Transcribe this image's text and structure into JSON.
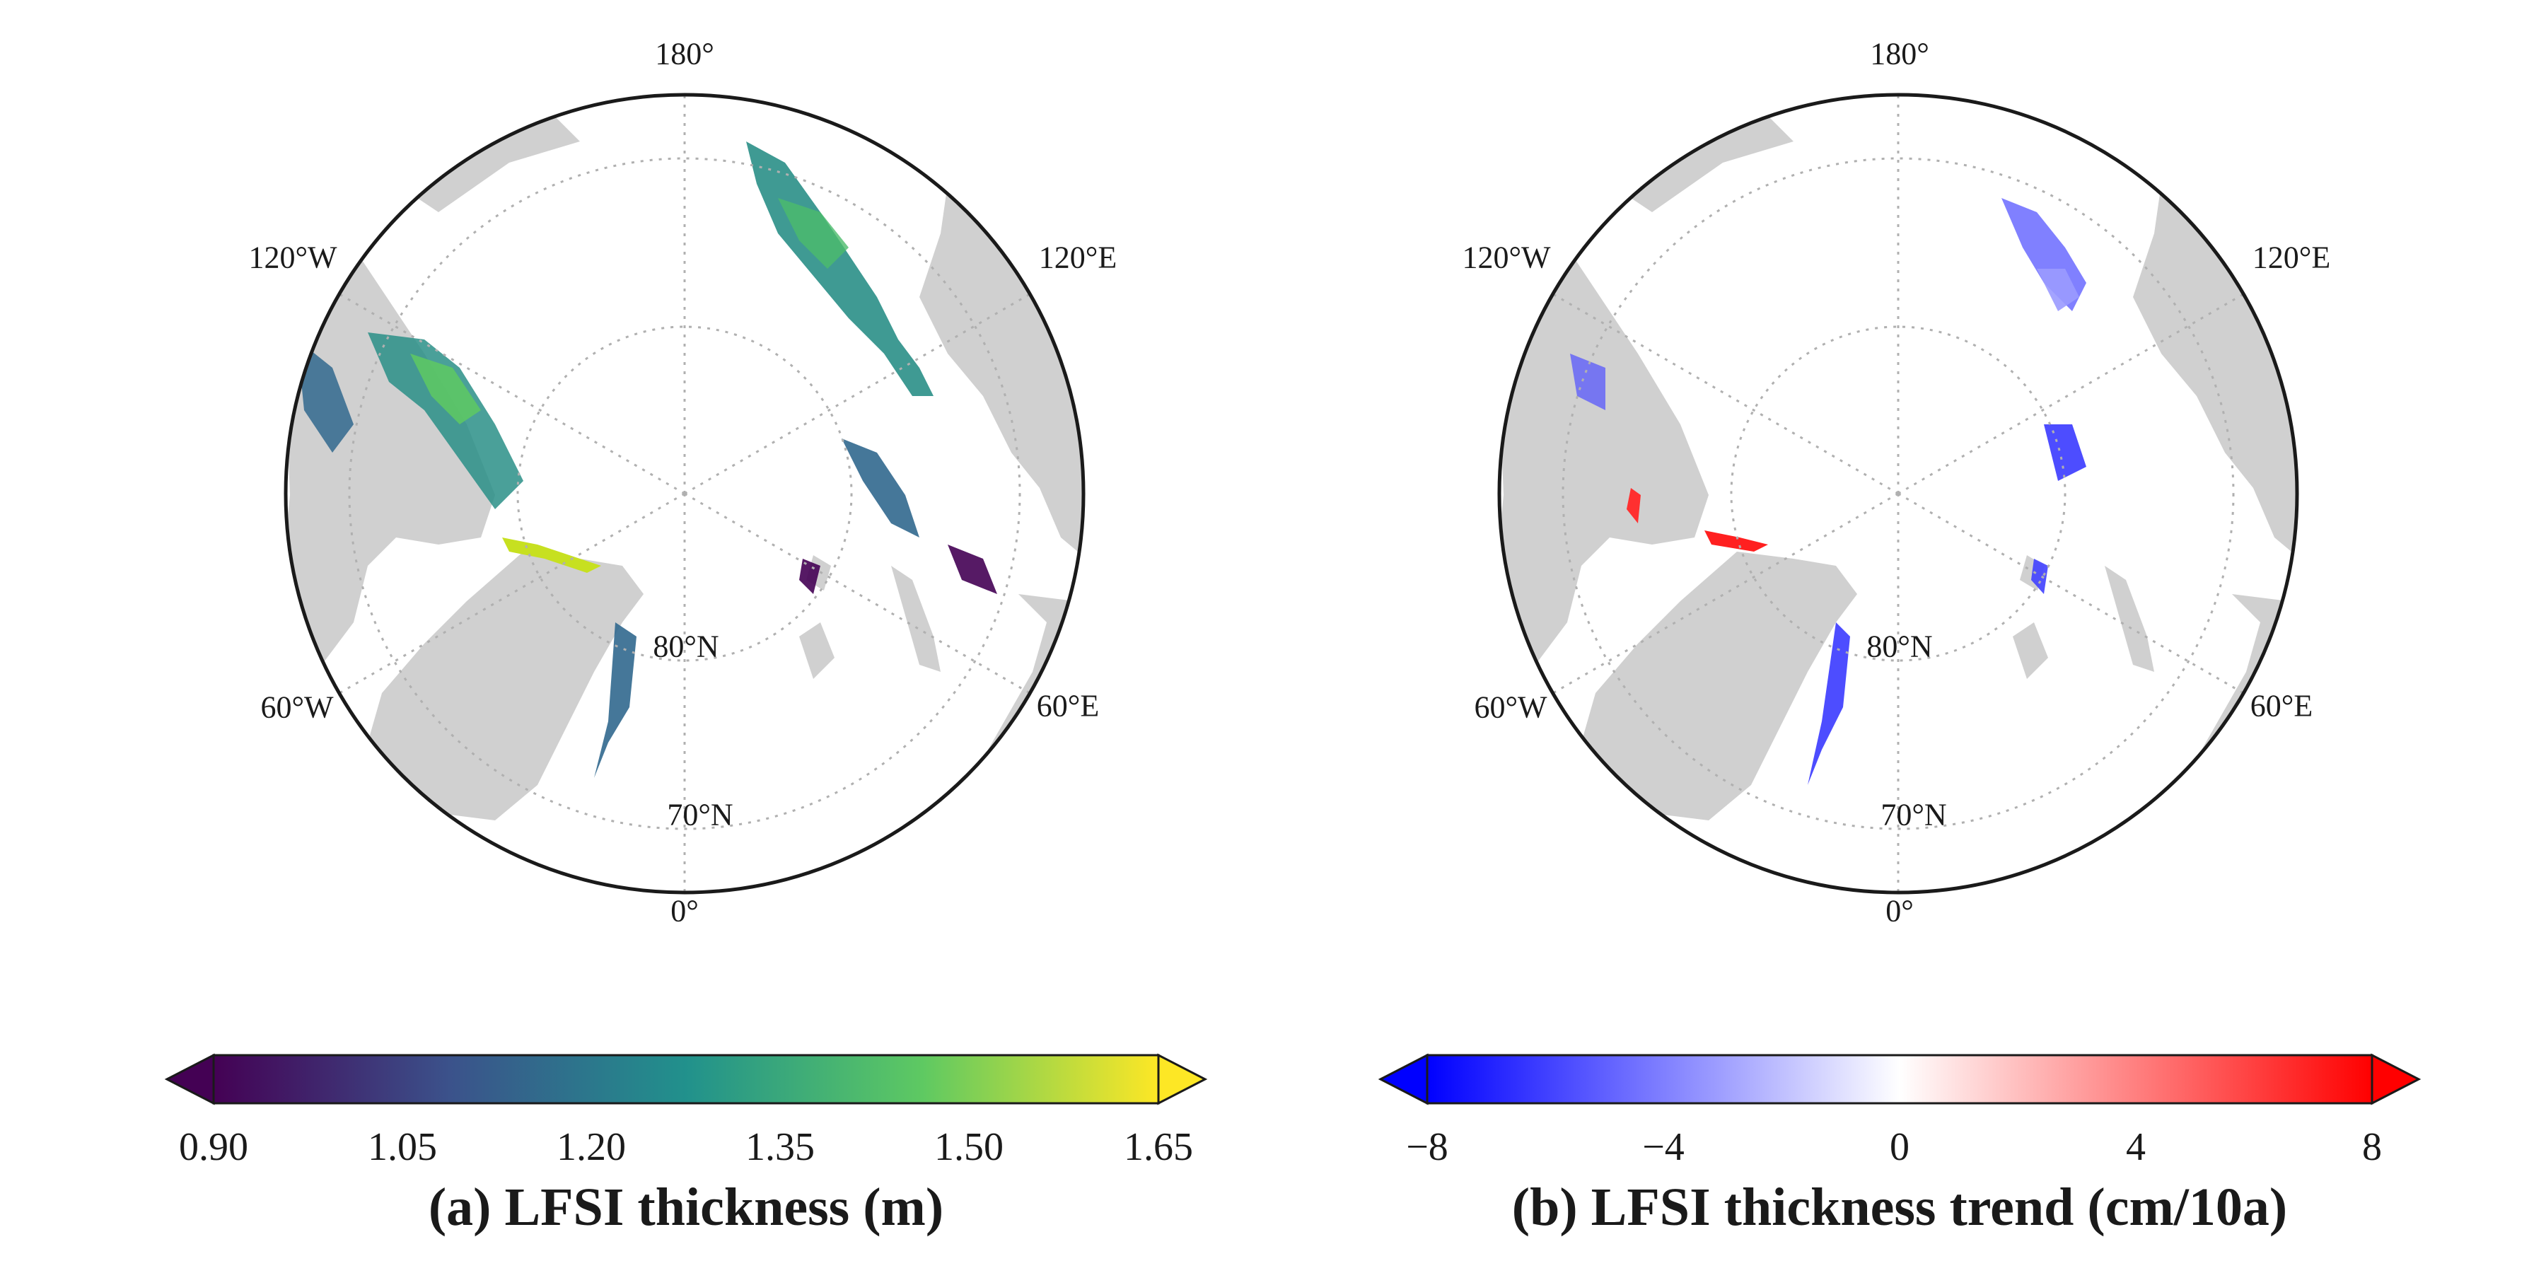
{
  "panel_a": {
    "labels": {
      "lon_180": "180°",
      "lon_0": "0°",
      "lon_120w": "120°W",
      "lon_120e": "120°E",
      "lon_60w": "60°W",
      "lon_60e": "60°E",
      "lat_80": "80°N",
      "lat_70": "70°N"
    },
    "colorbar": {
      "ticks": [
        "0.90",
        "1.05",
        "1.20",
        "1.35",
        "1.50",
        "1.65"
      ],
      "range": [
        0.9,
        1.65
      ],
      "colormap": [
        "#440154",
        "#3b528b",
        "#21918c",
        "#5ec962",
        "#fde725"
      ],
      "title": "(a) LFSI thickness (m)"
    }
  },
  "panel_b": {
    "labels": {
      "lon_180": "180°",
      "lon_0": "0°",
      "lon_120w": "120°W",
      "lon_120e": "120°E",
      "lon_60w": "60°W",
      "lon_60e": "60°E",
      "lat_80": "80°N",
      "lat_70": "70°N"
    },
    "colorbar": {
      "ticks": [
        "−8",
        "−4",
        "0",
        "4",
        "8"
      ],
      "range": [
        -8,
        8
      ],
      "colormap": [
        "#0000ff",
        "#ffffff",
        "#ff0000"
      ],
      "title": "(b) LFSI thickness trend (cm/10a)"
    }
  },
  "colors": {
    "land": "#d0d0d0",
    "ocean": "#ffffff",
    "border": "#1a1a1a",
    "gridline": "#b0b0b0"
  }
}
